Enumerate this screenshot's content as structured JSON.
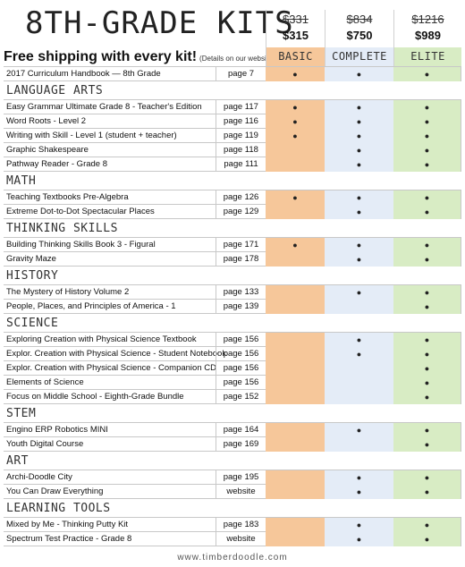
{
  "header": {
    "title": "8TH-GRADE KITS",
    "shipping": "Free shipping with every kit!",
    "shipping_note": "(Details on our website.)"
  },
  "kits": [
    {
      "key": "basic",
      "name": "BASIC",
      "old_price": "$331",
      "price": "$315"
    },
    {
      "key": "complete",
      "name": "COMPLETE",
      "old_price": "$834",
      "price": "$750"
    },
    {
      "key": "elite",
      "name": "ELITE",
      "old_price": "$1216",
      "price": "$989"
    }
  ],
  "colors": {
    "basic": "#f6c79a",
    "complete": "#e4ecf7",
    "elite": "#d8ecc4"
  },
  "bullet": "●",
  "rows": [
    {
      "type": "item",
      "name": "2017 Curriculum Handbook — 8th Grade",
      "page": "page 7",
      "b": true,
      "c": true,
      "e": true
    },
    {
      "type": "section",
      "name": "LANGUAGE ARTS"
    },
    {
      "type": "item",
      "name": "Easy Grammar Ultimate Grade 8 - Teacher's Edition",
      "page": "page 117",
      "b": true,
      "c": true,
      "e": true
    },
    {
      "type": "item",
      "name": "Word Roots - Level 2",
      "page": "page 116",
      "b": true,
      "c": true,
      "e": true
    },
    {
      "type": "item",
      "name": "Writing with Skill - Level 1  (student + teacher)",
      "page": "page 119",
      "b": true,
      "c": true,
      "e": true
    },
    {
      "type": "item",
      "name": "Graphic Shakespeare",
      "page": "page 118",
      "b": false,
      "c": true,
      "e": true
    },
    {
      "type": "item",
      "name": "Pathway Reader - Grade 8",
      "page": "page 111",
      "b": false,
      "c": true,
      "e": true
    },
    {
      "type": "section",
      "name": "MATH"
    },
    {
      "type": "item",
      "name": "Teaching Textbooks Pre-Algebra",
      "page": "page 126",
      "b": true,
      "c": true,
      "e": true
    },
    {
      "type": "item",
      "name": "Extreme Dot-to-Dot Spectacular Places",
      "page": "page 129",
      "b": false,
      "c": true,
      "e": true
    },
    {
      "type": "section",
      "name": "THINKING SKILLS"
    },
    {
      "type": "item",
      "name": "Building Thinking Skills Book 3 - Figural",
      "page": "page 171",
      "b": true,
      "c": true,
      "e": true
    },
    {
      "type": "item",
      "name": "Gravity Maze",
      "page": "page 178",
      "b": false,
      "c": true,
      "e": true
    },
    {
      "type": "section",
      "name": "HISTORY"
    },
    {
      "type": "item",
      "name": "The Mystery of History  Volume 2",
      "page": "page 133",
      "b": false,
      "c": true,
      "e": true
    },
    {
      "type": "item",
      "name": "People, Places, and Principles of America - 1",
      "page": "page 139",
      "b": false,
      "c": false,
      "e": true
    },
    {
      "type": "section",
      "name": "SCIENCE"
    },
    {
      "type": "item",
      "name": "Exploring Creation with Physical Science  Textbook",
      "page": "page 156",
      "b": false,
      "c": true,
      "e": true
    },
    {
      "type": "item",
      "name": "Explor. Creation with Physical Science - Student Notebook",
      "page": "page 156",
      "b": false,
      "c": true,
      "e": true
    },
    {
      "type": "item",
      "name": "Explor. Creation with Physical Science - Companion CD",
      "page": "page 156",
      "b": false,
      "c": false,
      "e": true
    },
    {
      "type": "item",
      "name": "Elements of Science",
      "page": "page 156",
      "b": false,
      "c": false,
      "e": true
    },
    {
      "type": "item",
      "name": "Focus on Middle School - Eighth-Grade Bundle",
      "page": "page 152",
      "b": false,
      "c": false,
      "e": true
    },
    {
      "type": "section",
      "name": "STEM"
    },
    {
      "type": "item",
      "name": "Engino ERP Robotics MINI",
      "page": "page 164",
      "b": false,
      "c": true,
      "e": true
    },
    {
      "type": "item",
      "name": "Youth Digital Course",
      "page": "page 169",
      "b": false,
      "c": false,
      "e": true
    },
    {
      "type": "section",
      "name": "ART"
    },
    {
      "type": "item",
      "name": "Archi-Doodle City",
      "page": "page 195",
      "b": false,
      "c": true,
      "e": true
    },
    {
      "type": "item",
      "name": "You Can Draw Everything",
      "page": "website",
      "b": false,
      "c": true,
      "e": true
    },
    {
      "type": "section",
      "name": "LEARNING TOOLS"
    },
    {
      "type": "item",
      "name": "Mixed by Me - Thinking Putty Kit",
      "page": "page 183",
      "b": false,
      "c": true,
      "e": true
    },
    {
      "type": "item",
      "name": "Spectrum Test Practice - Grade 8",
      "page": "website",
      "b": false,
      "c": true,
      "e": true
    }
  ],
  "footer": "www.timberdoodle.com"
}
